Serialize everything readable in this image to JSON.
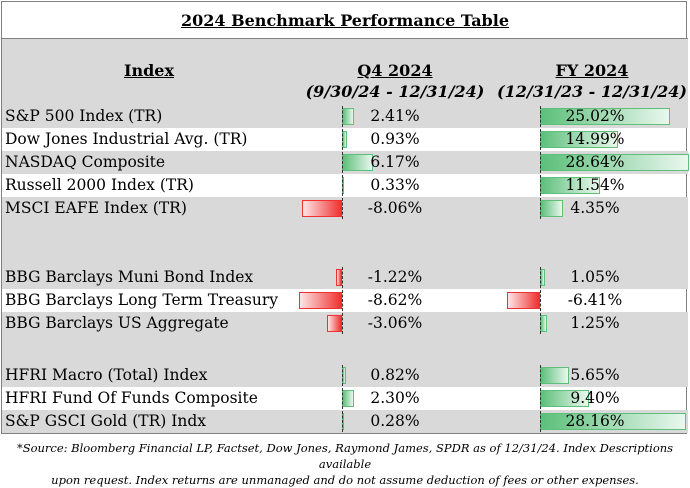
{
  "title": "2024 Benchmark Performance Table",
  "headers": {
    "index": "Index",
    "q4_title": "Q4 2024",
    "q4_range": "(9/30/24 - 12/31/24)",
    "fy_title": "FY 2024",
    "fy_range": "(12/31/23 - 12/31/24)"
  },
  "colors": {
    "positive_bar": "#5cbf7a",
    "negative_bar": "#f03030",
    "row_shade": "#d9d9d9"
  },
  "groups": [
    {
      "rows": [
        {
          "name": "S&P 500 Index (TR)",
          "q4": 2.41,
          "q4_label": "2.41%",
          "fy": 25.02,
          "fy_label": "25.02%"
        },
        {
          "name": "Dow Jones Industrial Avg. (TR)",
          "q4": 0.93,
          "q4_label": "0.93%",
          "fy": 14.99,
          "fy_label": "14.99%"
        },
        {
          "name": "NASDAQ Composite",
          "q4": 6.17,
          "q4_label": "6.17%",
          "fy": 28.64,
          "fy_label": "28.64%"
        },
        {
          "name": "Russell 2000 Index (TR)",
          "q4": 0.33,
          "q4_label": "0.33%",
          "fy": 11.54,
          "fy_label": "11.54%"
        },
        {
          "name": "MSCI EAFE Index (TR)",
          "q4": -8.06,
          "q4_label": "-8.06%",
          "fy": 4.35,
          "fy_label": "4.35%"
        }
      ]
    },
    {
      "rows": [
        {
          "name": "BBG Barclays Muni Bond Index",
          "q4": -1.22,
          "q4_label": "-1.22%",
          "fy": 1.05,
          "fy_label": "1.05%"
        },
        {
          "name": "BBG Barclays Long Term Treasury",
          "q4": -8.62,
          "q4_label": "-8.62%",
          "fy": -6.41,
          "fy_label": "-6.41%"
        },
        {
          "name": "BBG Barclays US Aggregate",
          "q4": -3.06,
          "q4_label": "-3.06%",
          "fy": 1.25,
          "fy_label": "1.25%"
        }
      ]
    },
    {
      "rows": [
        {
          "name": "HFRI Macro (Total) Index",
          "q4": 0.82,
          "q4_label": "0.82%",
          "fy": 5.65,
          "fy_label": "5.65%"
        },
        {
          "name": "HFRI Fund Of Funds Composite",
          "q4": 2.3,
          "q4_label": "2.30%",
          "fy": 9.4,
          "fy_label": "9.40%"
        },
        {
          "name": "S&P GSCI Gold (TR) Indx",
          "q4": 0.28,
          "q4_label": "0.28%",
          "fy": 28.16,
          "fy_label": "28.16%"
        }
      ]
    }
  ],
  "footnote_line1": "*Source: Bloomberg Financial LP, Factset, Dow Jones, Raymond James, SPDR  as of 12/31/24. Index Descriptions available",
  "footnote_line2": "upon request. Index returns are unmanaged and do not assume deduction of fees or other expenses."
}
